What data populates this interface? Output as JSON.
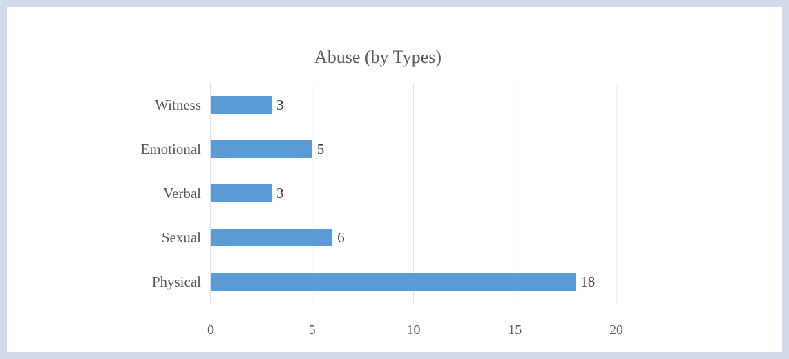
{
  "chart_data": {
    "type": "bar",
    "orientation": "horizontal",
    "title": "Abuse (by Types)",
    "xlabel": "",
    "ylabel": "",
    "categories": [
      "Witness",
      "Emotional",
      "Verbal",
      "Sexual",
      "Physical"
    ],
    "values": [
      3,
      5,
      3,
      6,
      18
    ],
    "x_ticks": [
      "0",
      "5",
      "10",
      "15",
      "20"
    ],
    "xlim": [
      0,
      20
    ],
    "grid": true,
    "legend": "none",
    "bar_color": "#5b9bd5",
    "data_labels": true
  }
}
